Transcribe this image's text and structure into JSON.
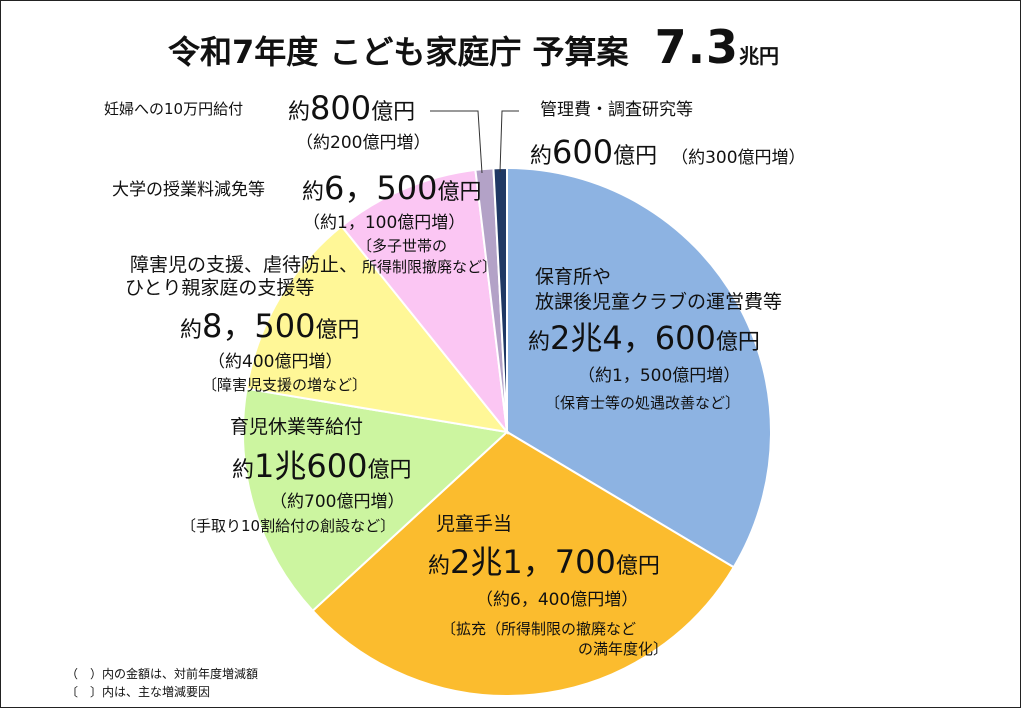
{
  "title": {
    "text": "令和7年度 こども家庭庁 予算案",
    "total_value": "7.3",
    "total_unit": "兆円"
  },
  "chart_data": {
    "type": "pie",
    "unit": "億円",
    "slices": [
      {
        "label": "保育所や放課後児童クラブの運営費等",
        "value": 24600,
        "color": "#8db3e2",
        "label_lines": [
          "保育所や",
          "放課後児童クラブの運営費等"
        ],
        "amount_prefix": "約",
        "amount_main": "2兆4，600",
        "amount_unit": "億円",
        "change": "（約1，500億円増）",
        "reason": "〔保育士等の処遇改善など〕"
      },
      {
        "label": "児童手当",
        "value": 21700,
        "color": "#fbbc2e",
        "label_lines": [
          "児童手当"
        ],
        "amount_prefix": "約",
        "amount_main": "2兆1，700",
        "amount_unit": "億円",
        "change": "（約6，400億円増）",
        "reason_lines": [
          "〔拡充（所得制限の撤廃など",
          "の満年度化〕"
        ]
      },
      {
        "label": "育児休業等給付",
        "value": 10600,
        "color": "#ccf5a0",
        "label_lines": [
          "育児休業等給付"
        ],
        "amount_prefix": "約",
        "amount_main": "1兆600",
        "amount_unit": "億円",
        "change": "（約700億円増）",
        "reason": "〔手取り10割給付の創設など〕"
      },
      {
        "label": "障害児の支援、虐待防止、ひとり親家庭の支援等",
        "value": 8500,
        "color": "#fff797",
        "label_lines": [
          "障害児の支援、虐待防止、",
          "ひとり親家庭の支援等"
        ],
        "amount_prefix": "約",
        "amount_main": "8，500",
        "amount_unit": "億円",
        "change": "（約400億円増）",
        "reason": "〔障害児支援の増など〕"
      },
      {
        "label": "大学の授業料減免等",
        "value": 6500,
        "color": "#fbc6f3",
        "label_lines": [
          "大学の授業料減免等"
        ],
        "amount_prefix": "約",
        "amount_main": "6，500",
        "amount_unit": "億円",
        "change": "（約1，100億円増）",
        "reason_lines": [
          "〔多子世帯の",
          "所得制限撤廃など〕"
        ]
      },
      {
        "label": "妊婦への10万円給付",
        "value": 800,
        "color": "#b3a2c7",
        "label_lines": [
          "妊婦への10万円給付"
        ],
        "amount_prefix": "約",
        "amount_main": "800",
        "amount_unit": "億円",
        "change": "（約200億円増）"
      },
      {
        "label": "管理費・調査研究等",
        "value": 600,
        "color": "#1f3864",
        "label_lines": [
          "管理費・調査研究等"
        ],
        "amount_prefix": "約",
        "amount_main": "600",
        "amount_unit": "億円",
        "change": "（約300億円増）"
      }
    ]
  },
  "notes": [
    "（　）内の金額は、対前年度増減額",
    "〔　〕内は、主な増減要因"
  ]
}
